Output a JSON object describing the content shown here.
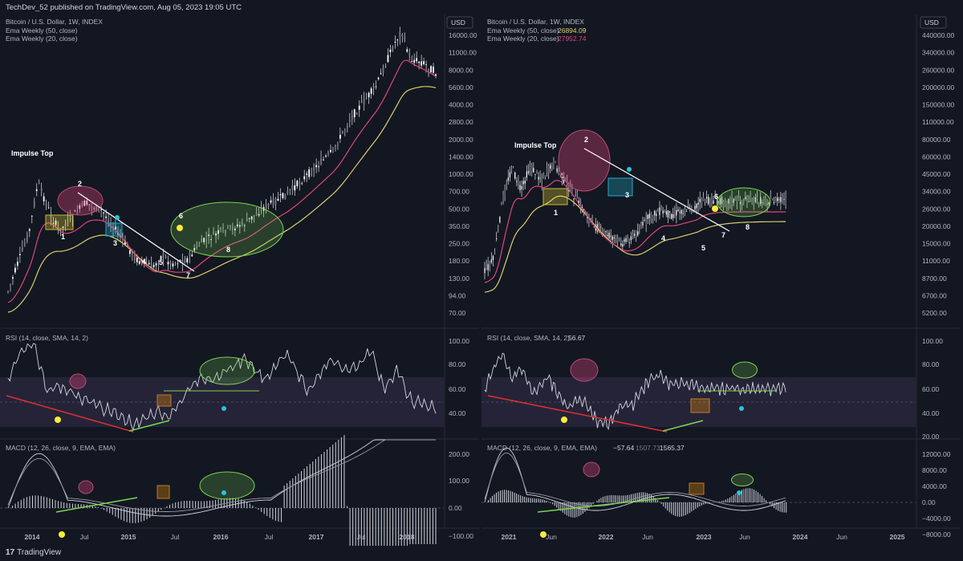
{
  "header": {
    "publish_line": "TechDev_52 published on TradingView.com, Aug 05, 2023 19:05 UTC"
  },
  "footer": {
    "brand": "TradingView",
    "brand_mark": "17"
  },
  "colors": {
    "bg": "#131722",
    "ema50": "#d8cf6a",
    "ema20": "#e0457b",
    "rsi_band": "#252338",
    "green": "#7bd651",
    "red": "#e03030",
    "cyan": "#26c6da",
    "yellow": "#ffeb3b"
  },
  "chart_data": [
    {
      "type": "line",
      "title": "Bitcoin / U.S. Dollar, 1W, INDEX",
      "currency": "USD",
      "scale": "log",
      "series": [
        {
          "name": "Ema Weekly (50, close)"
        },
        {
          "name": "Ema Weekly (20, close)"
        }
      ],
      "y_ticks": [
        "16000.00",
        "11000.00",
        "8000.00",
        "5600.00",
        "4000.00",
        "2800.00",
        "2000.00",
        "1400.00",
        "1000.00",
        "700.00",
        "500.00",
        "350.00",
        "250.00",
        "180.00",
        "130.00",
        "94.00",
        "70.00"
      ],
      "x_ticks": [
        "2014",
        "Jul",
        "2015",
        "Jul",
        "2016",
        "Jul",
        "2017",
        "Jul",
        "2018"
      ],
      "annotations": [
        "Impulse Top",
        "1",
        "2",
        "3",
        "4",
        "5",
        "6",
        "7",
        "8"
      ],
      "rsi": {
        "title": "RSI (14, close, SMA, 14, 2)",
        "ticks": [
          "100.00",
          "80.00",
          "60.00",
          "40.00"
        ],
        "band": [
          30,
          70
        ]
      },
      "macd": {
        "title": "MACD (12, 26, close, 9, EMA, EMA)",
        "ticks": [
          "200.00",
          "100.00",
          "0.00",
          "−100.00"
        ]
      }
    },
    {
      "type": "line",
      "title": "Bitcoin / U.S. Dollar, 1W, INDEX",
      "currency": "USD",
      "scale": "log",
      "series": [
        {
          "name": "Ema Weekly (50, close)",
          "last": "26894.09"
        },
        {
          "name": "Ema Weekly (20, close)",
          "last": "27952.74"
        }
      ],
      "y_ticks": [
        "440000.00",
        "340000.00",
        "260000.00",
        "200000.00",
        "150000.00",
        "110000.00",
        "80000.00",
        "60000.00",
        "45000.00",
        "34000.00",
        "26000.00",
        "20000.00",
        "15000.00",
        "11000.00",
        "8700.00",
        "6700.00",
        "5200.00"
      ],
      "x_ticks": [
        "2021",
        "Jun",
        "2022",
        "Jun",
        "2023",
        "Jun",
        "2024",
        "Jun",
        "2025"
      ],
      "annotations": [
        "Impulse Top",
        "1",
        "2",
        "3",
        "4",
        "5",
        "6",
        "7",
        "8"
      ],
      "rsi": {
        "title": "RSI (14, close, SMA, 14, 2)",
        "value": "56.67",
        "ticks": [
          "100.00",
          "80.00",
          "60.00",
          "40.00",
          "20.00"
        ],
        "band": [
          30,
          70
        ]
      },
      "macd": {
        "title": "MACD (12, 26, close, 9, EMA, EMA)",
        "values": [
          "−57.64",
          "1507.73",
          "1565.37"
        ],
        "ticks": [
          "12000.00",
          "8000.00",
          "4000.00",
          "0.00",
          "−4000.00",
          "−8000.00"
        ]
      }
    }
  ]
}
